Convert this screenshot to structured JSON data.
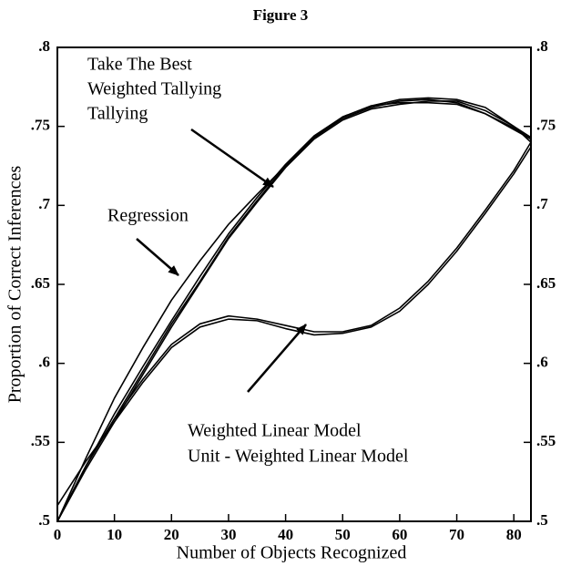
{
  "chart_data": {
    "type": "line",
    "title": "Figure 3",
    "xlabel": "Number of Objects Recognized",
    "ylabel": "Proportion of Correct Inferences",
    "x": [
      0,
      5,
      10,
      15,
      20,
      25,
      30,
      35,
      40,
      45,
      50,
      55,
      60,
      65,
      70,
      75,
      80,
      83
    ],
    "series": [
      {
        "name": "Take The Best",
        "color": "#000000",
        "values": [
          0.5,
          0.535,
          0.568,
          0.598,
          0.627,
          0.655,
          0.682,
          0.705,
          0.726,
          0.744,
          0.756,
          0.763,
          0.765,
          0.765,
          0.764,
          0.758,
          0.749,
          0.742
        ]
      },
      {
        "name": "Weighted Tallying",
        "color": "#000000",
        "values": [
          0.5,
          0.533,
          0.563,
          0.593,
          0.623,
          0.651,
          0.679,
          0.702,
          0.724,
          0.742,
          0.754,
          0.761,
          0.764,
          0.766,
          0.766,
          0.76,
          0.75,
          0.743
        ]
      },
      {
        "name": "Tallying",
        "color": "#000000",
        "values": [
          0.5,
          0.535,
          0.565,
          0.595,
          0.625,
          0.652,
          0.68,
          0.703,
          0.725,
          0.743,
          0.755,
          0.762,
          0.766,
          0.767,
          0.765,
          0.758,
          0.748,
          0.742
        ]
      },
      {
        "name": "Regression",
        "color": "#000000",
        "values": [
          0.5,
          0.54,
          0.578,
          0.61,
          0.64,
          0.665,
          0.688,
          0.707,
          0.725,
          0.743,
          0.756,
          0.763,
          0.767,
          0.768,
          0.767,
          0.762,
          0.75,
          0.74
        ]
      },
      {
        "name": "Weighted Linear Model",
        "color": "#000000",
        "values": [
          0.5,
          0.535,
          0.565,
          0.59,
          0.612,
          0.625,
          0.63,
          0.628,
          0.624,
          0.62,
          0.62,
          0.624,
          0.635,
          0.652,
          0.673,
          0.697,
          0.722,
          0.74
        ]
      },
      {
        "name": "Unit - Weighted Linear Model",
        "color": "#000000",
        "values": [
          0.51,
          0.538,
          0.563,
          0.588,
          0.61,
          0.623,
          0.628,
          0.627,
          0.622,
          0.618,
          0.619,
          0.623,
          0.633,
          0.65,
          0.671,
          0.695,
          0.72,
          0.737
        ]
      }
    ],
    "xlim": [
      0,
      83
    ],
    "xticks": [
      0,
      10,
      20,
      30,
      40,
      50,
      60,
      70,
      80
    ],
    "ylim": [
      0.5,
      0.8
    ],
    "yticks": [
      {
        "value": 0.5,
        "label": ".5"
      },
      {
        "value": 0.55,
        "label": ".55"
      },
      {
        "value": 0.6,
        "label": ".6"
      },
      {
        "value": 0.65,
        "label": ".65"
      },
      {
        "value": 0.7,
        "label": ".7"
      },
      {
        "value": 0.75,
        "label": ".75"
      },
      {
        "value": 0.8,
        "label": ".8"
      }
    ],
    "grid": false
  }
}
